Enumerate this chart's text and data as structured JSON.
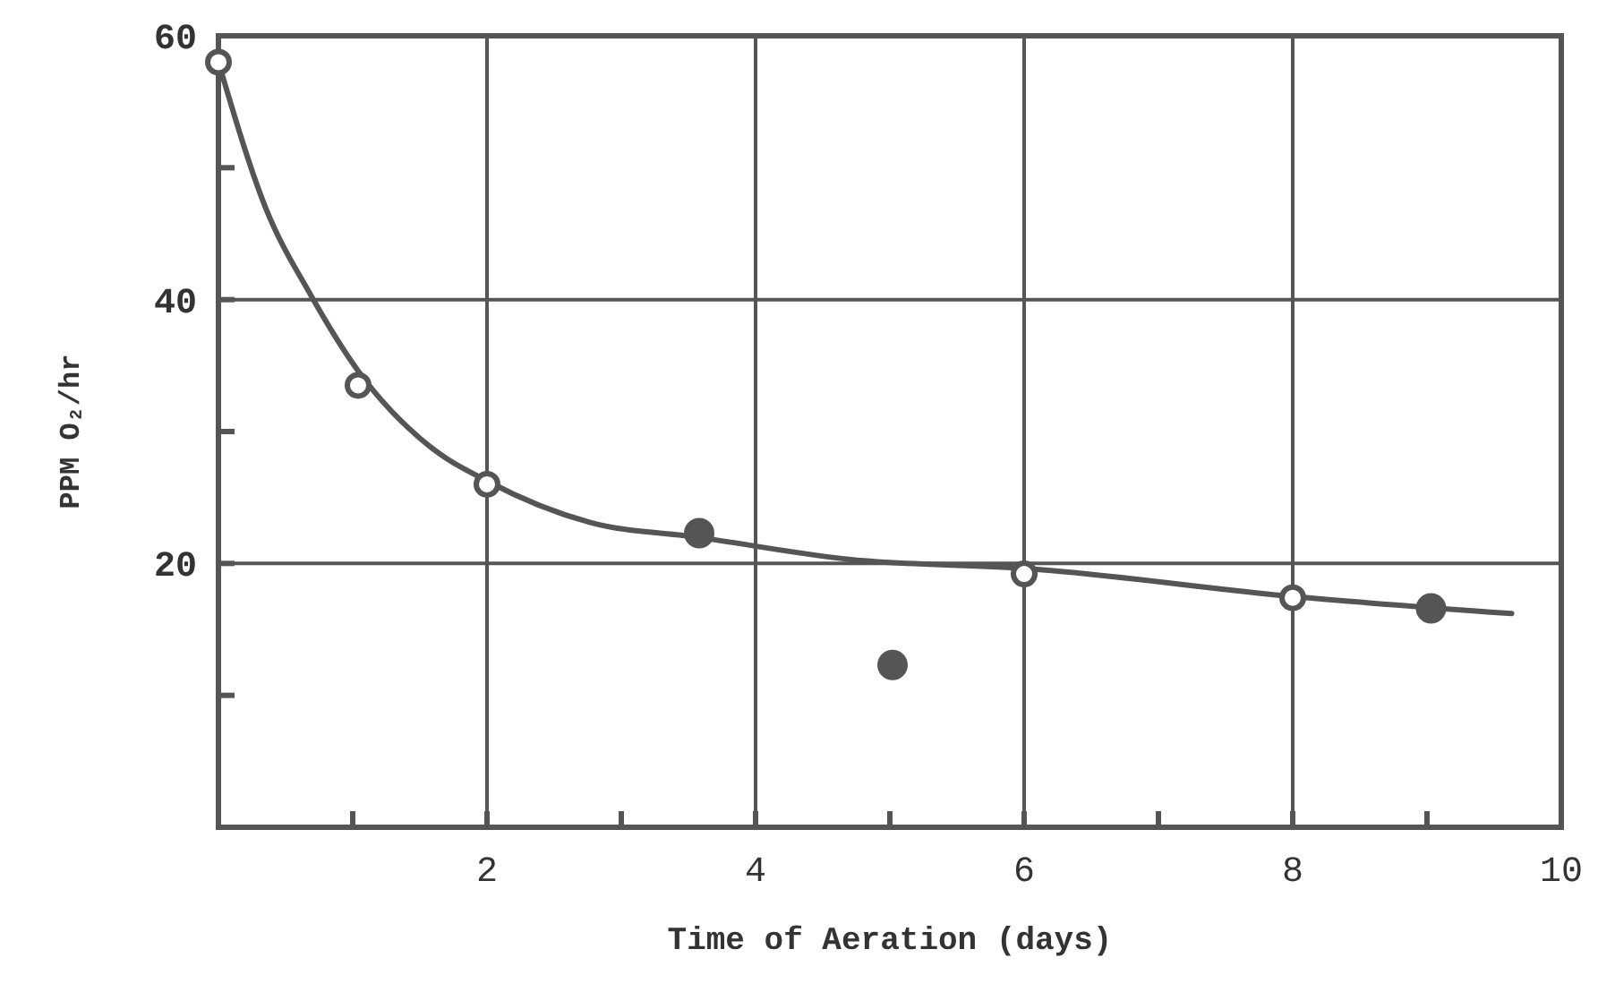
{
  "chart_data": {
    "type": "scatter",
    "xlabel": "Time of Aeration (days)",
    "ylabel": "PPM O₂/hr",
    "xlim": [
      0,
      10
    ],
    "ylim": [
      0,
      60
    ],
    "xticks": [
      {
        "value": 0,
        "label": null
      },
      {
        "value": 1,
        "label": null
      },
      2,
      {
        "value": 3,
        "label": null
      },
      4,
      {
        "value": 5,
        "label": null
      },
      6,
      {
        "value": 7,
        "label": null
      },
      8,
      {
        "value": 9,
        "label": null
      },
      10
    ],
    "yticks": [
      {
        "value": 0,
        "label": null
      },
      {
        "value": 10,
        "label": null
      },
      20,
      {
        "value": 30,
        "label": null
      },
      40,
      {
        "value": 50,
        "label": null
      },
      60
    ],
    "grid": true,
    "series": [
      {
        "type": "line",
        "color": "#555555",
        "marker": "none",
        "line_style": "solid",
        "x": [
          0,
          0.35,
          0.69,
          1.04,
          1.57,
          2.01,
          2.77,
          3.56,
          4.71,
          6.04,
          8.0,
          9.63
        ],
        "values": [
          58,
          47,
          40.3,
          34.6,
          28.9,
          26.2,
          23.1,
          22.0,
          20.3,
          19.6,
          17.5,
          16.2
        ]
      },
      {
        "type": "scatter",
        "color": "#ffffff",
        "marker": "circle",
        "x": [
          0,
          1.04,
          2.0,
          6.0,
          8.0
        ],
        "values": [
          58,
          33.5,
          26,
          19.2,
          17.4
        ]
      },
      {
        "color": "#555555",
        "marker": "circle",
        "x": [
          3.58,
          5.02,
          9.03
        ],
        "values": [
          22.3,
          12.3,
          16.6
        ]
      }
    ]
  }
}
